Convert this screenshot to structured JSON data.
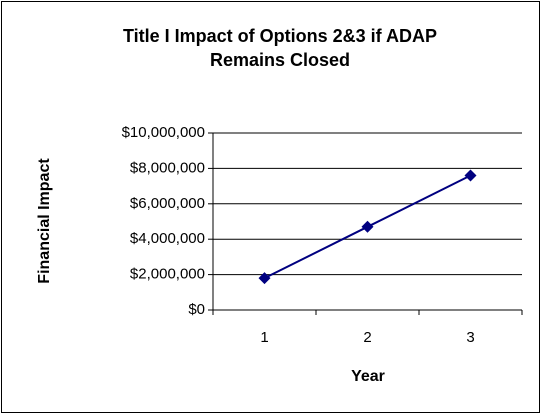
{
  "chart_data": {
    "type": "line",
    "title_lines": [
      "Title I Impact of Options 2&3 if ADAP",
      "Remains Closed"
    ],
    "x_label": "Year",
    "y_label": "Financial Impact",
    "categories": [
      "1",
      "2",
      "3"
    ],
    "series": [
      {
        "name": null,
        "color": "#000080",
        "values": [
          1800000,
          4700000,
          7600000
        ]
      }
    ],
    "ylim": [
      0,
      10000000
    ],
    "yticks": [
      {
        "value": 0,
        "label": "$0"
      },
      {
        "value": 2000000,
        "label": "$2,000,000"
      },
      {
        "value": 4000000,
        "label": "$4,000,000"
      },
      {
        "value": 6000000,
        "label": "$6,000,000"
      },
      {
        "value": 8000000,
        "label": "$8,000,000"
      },
      {
        "value": 10000000,
        "label": "$10,000,000"
      }
    ],
    "grid": true
  }
}
